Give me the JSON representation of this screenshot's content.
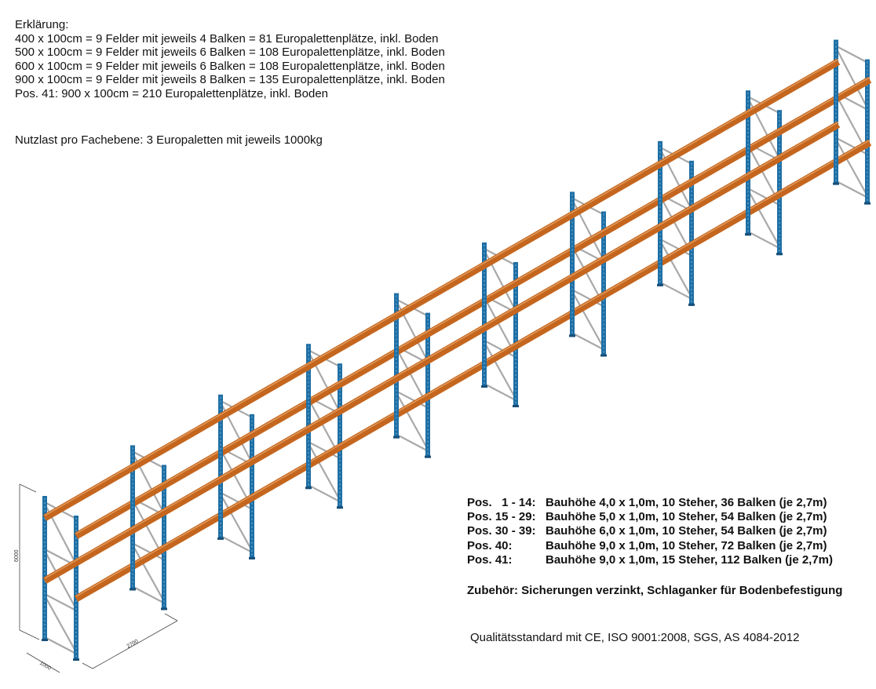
{
  "legend": {
    "title": "Erklärung:",
    "lines": [
      "400 x 100cm = 9 Felder mit jeweils 4 Balken = 81 Europalettenplätze, inkl. Boden",
      "500 x 100cm = 9 Felder mit jeweils 6 Balken = 108 Europalettenplätze, inkl. Boden",
      "600 x 100cm = 9 Felder mit jeweils 6 Balken = 108 Europalettenplätze, inkl. Boden",
      "900 x 100cm = 9 Felder mit jeweils 8 Balken = 135 Europalettenplätze, inkl. Boden",
      "Pos. 41: 900 x 100cm = 210 Europalettenplätze, inkl. Boden"
    ]
  },
  "load": "Nutzlast pro Fachebene: 3 Europaletten mit jeweils 1000kg",
  "positions": [
    {
      "key": "Pos.   1 - 14:",
      "desc": "Bauhöhe 4,0 x 1,0m, 10 Steher, 36 Balken (je 2,7m)"
    },
    {
      "key": "Pos. 15 - 29:",
      "desc": "Bauhöhe 5,0 x 1,0m, 10 Steher, 54 Balken (je 2,7m)"
    },
    {
      "key": "Pos. 30 - 39:",
      "desc": "Bauhöhe 6,0 x 1,0m, 10 Steher, 54 Balken (je 2,7m)"
    },
    {
      "key": "Pos. 40:",
      "desc": "Bauhöhe 9,0 x 1,0m, 10 Steher, 72 Balken (je 2,7m)"
    },
    {
      "key": "Pos. 41:",
      "desc": "Bauhöhe 9,0 x 1,0m, 15 Steher, 112 Balken (je 2,7m)"
    }
  ],
  "accessories": "Zubehör: Sicherungen verzinkt, Schlaganker für Bodenbefestigung",
  "quality": "Qualitätsstandard mit CE, ISO 9001:2008, SGS, AS 4084-2012",
  "drawing": {
    "frame_count": 10,
    "beam_levels_per_side": 2,
    "dimensions": {
      "height": "6000",
      "depth": "1000",
      "bay_width": "2700"
    },
    "colors": {
      "upright": "#1e6fa5",
      "beam": "#c5661e",
      "brace": "#a8a8a8"
    }
  }
}
